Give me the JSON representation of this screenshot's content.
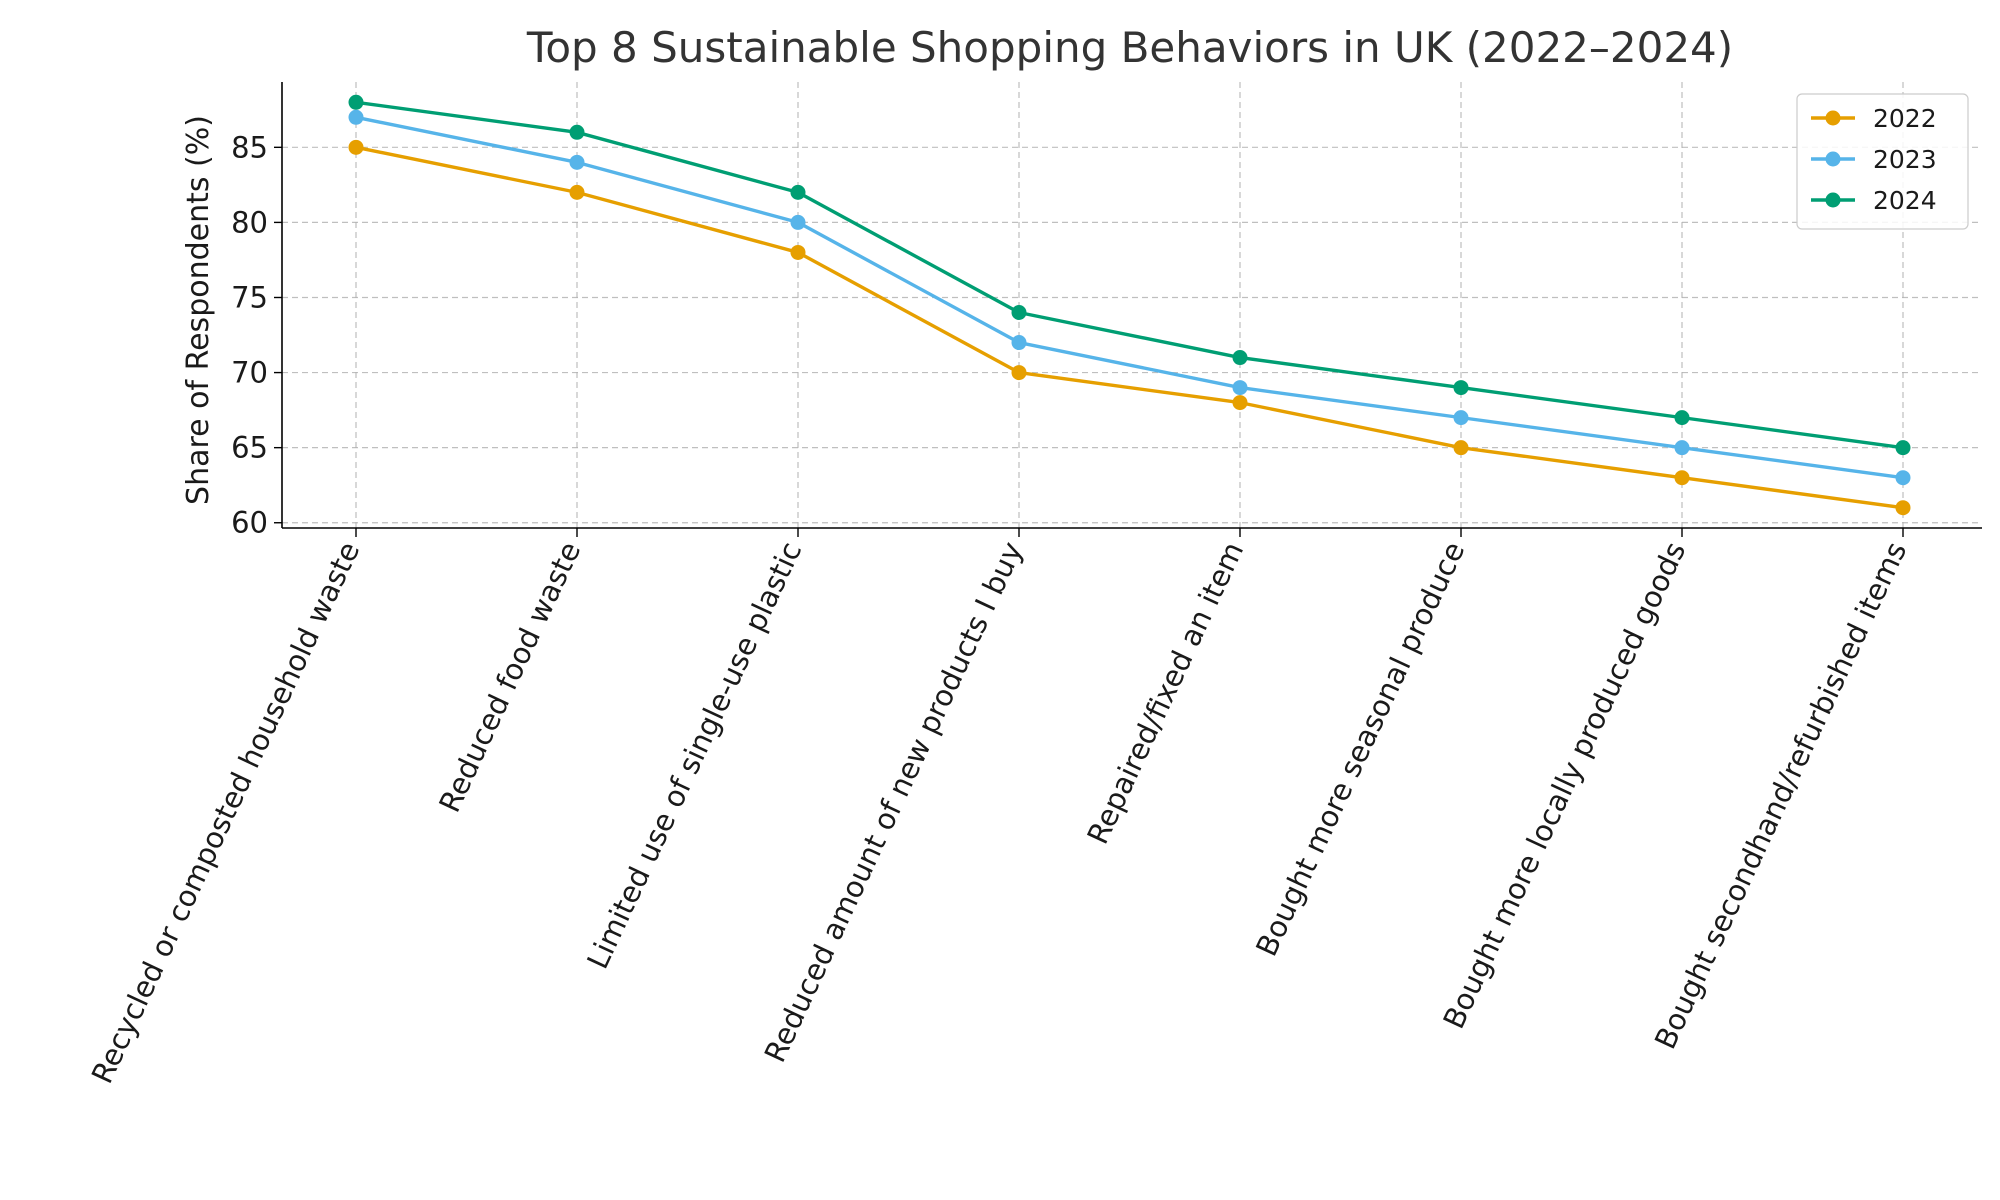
{
  "chart_data": {
    "type": "line",
    "title": "Top 8 Sustainable Shopping Behaviors in UK (2022–2024)",
    "xlabel": "",
    "ylabel": "Share of Respondents (%)",
    "categories": [
      "Recycled or composted household waste",
      "Reduced food waste",
      "Limited use of single-use plastic",
      "Reduced amount of new products I buy",
      "Repaired/fixed an item",
      "Bought more seasonal produce",
      "Bought more locally produced goods",
      "Bought secondhand/refurbished items"
    ],
    "series": [
      {
        "name": "2022",
        "color": "#E69F00",
        "values": [
          85,
          82,
          78,
          70,
          68,
          65,
          63,
          61
        ]
      },
      {
        "name": "2023",
        "color": "#56B4E9",
        "values": [
          87,
          84,
          80,
          72,
          69,
          67,
          65,
          63
        ]
      },
      {
        "name": "2024",
        "color": "#009E73",
        "values": [
          88,
          86,
          82,
          74,
          71,
          69,
          67,
          65
        ]
      }
    ],
    "yticks": [
      60,
      65,
      70,
      75,
      80,
      85
    ],
    "ylim": [
      59.65,
      89.35
    ],
    "grid": true,
    "legend": "top-right",
    "marker": "circle"
  }
}
